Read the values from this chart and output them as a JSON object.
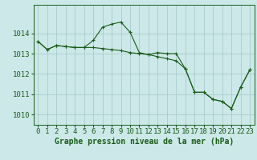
{
  "title": "Graphe pression niveau de la mer (hPa)",
  "bg_color": "#cce8e8",
  "grid_color": "#aacccc",
  "line_color": "#1a5c1a",
  "marker_color": "#1a5c1a",
  "xlim": [
    -0.5,
    23.5
  ],
  "ylim": [
    1009.5,
    1015.4
  ],
  "yticks": [
    1010,
    1011,
    1012,
    1013,
    1014
  ],
  "xticks": [
    0,
    1,
    2,
    3,
    4,
    5,
    6,
    7,
    8,
    9,
    10,
    11,
    12,
    13,
    14,
    15,
    16,
    17,
    18,
    19,
    20,
    21,
    22,
    23
  ],
  "series1_x": [
    0,
    1,
    2,
    3,
    4,
    5,
    6,
    7,
    8,
    9,
    10,
    11,
    12,
    13,
    14,
    15,
    16,
    17,
    18,
    19,
    20,
    21,
    22,
    23
  ],
  "series1_y": [
    1013.6,
    1013.2,
    1013.4,
    1013.35,
    1013.3,
    1013.3,
    1013.65,
    1014.3,
    1014.45,
    1014.55,
    1014.05,
    1013.05,
    1012.95,
    1013.05,
    1013.0,
    1013.0,
    1012.25,
    1011.1,
    1011.1,
    1010.75,
    1010.65,
    1010.3,
    1011.35,
    1012.2
  ],
  "series2_x": [
    0,
    1,
    2,
    3,
    4,
    5,
    6,
    7,
    8,
    9,
    10,
    11,
    12,
    13,
    14,
    15,
    16,
    17,
    18,
    19,
    20,
    21,
    22,
    23
  ],
  "series2_y": [
    1013.6,
    1013.2,
    1013.4,
    1013.35,
    1013.3,
    1013.3,
    1013.3,
    1013.25,
    1013.2,
    1013.15,
    1013.05,
    1013.0,
    1012.95,
    1012.85,
    1012.75,
    1012.65,
    1012.25,
    1011.1,
    1011.1,
    1010.75,
    1010.65,
    1010.3,
    1011.35,
    1012.2
  ],
  "tick_fontsize": 6.5,
  "title_fontsize": 7.0
}
